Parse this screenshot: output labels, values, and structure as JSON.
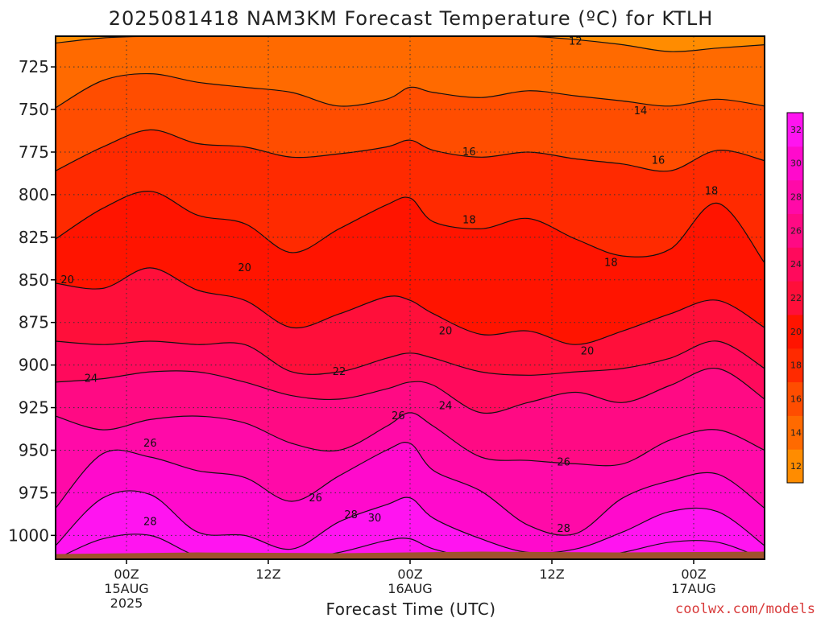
{
  "chart_data": {
    "type": "heatmap",
    "title": "2025081418 NAM3KM Forecast Temperature (ºC) for KTLH",
    "xlabel": "Forecast Time (UTC)",
    "ylabel": "",
    "y_axis": {
      "ticks": [
        725,
        750,
        775,
        800,
        825,
        850,
        875,
        900,
        925,
        950,
        975,
        1000
      ],
      "range": [
        707,
        1014
      ],
      "inverted": true
    },
    "x_axis": {
      "ticks": [
        {
          "hour": 6,
          "lines": [
            "00Z",
            "15AUG",
            "2025"
          ]
        },
        {
          "hour": 18,
          "lines": [
            "12Z"
          ]
        },
        {
          "hour": 30,
          "lines": [
            "00Z",
            "16AUG"
          ]
        },
        {
          "hour": 42,
          "lines": [
            "12Z"
          ]
        },
        {
          "hour": 54,
          "lines": [
            "00Z",
            "17AUG"
          ]
        }
      ],
      "range": [
        0,
        60
      ]
    },
    "grid": true,
    "colorbar": {
      "ticks": [
        12,
        14,
        16,
        18,
        20,
        22,
        24,
        26,
        28,
        30,
        32
      ],
      "colors": [
        "#ff8c00",
        "#ff6a00",
        "#ff4d00",
        "#ff2a00",
        "#ff1400",
        "#ff0f3a",
        "#ff0a5c",
        "#ff0a84",
        "#ff0aa8",
        "#ff0acc",
        "#ff14f0"
      ],
      "placement": "right"
    },
    "contours": [
      {
        "level": 12,
        "labels": [
          [
            44,
            710
          ]
        ]
      },
      {
        "level": 14,
        "labels": [
          [
            49.5,
            751
          ]
        ]
      },
      {
        "level": 16,
        "labels": [
          [
            35,
            775
          ]
        ],
        "labels2": [
          [
            51,
            780
          ]
        ]
      },
      {
        "level": 18,
        "labels": [
          [
            35,
            815
          ],
          [
            47,
            840
          ],
          [
            55.5,
            798
          ]
        ]
      },
      {
        "level": 20,
        "labels": [
          [
            1,
            850
          ],
          [
            16,
            843
          ],
          [
            33,
            880
          ],
          [
            45,
            892
          ]
        ]
      },
      {
        "level": 22,
        "labels": [
          [
            24,
            904
          ]
        ]
      },
      {
        "level": 24,
        "labels": [
          [
            3,
            908
          ],
          [
            33,
            924
          ]
        ]
      },
      {
        "level": 26,
        "labels": [
          [
            8,
            946
          ],
          [
            29,
            930
          ],
          [
            22,
            978
          ],
          [
            43,
            957
          ]
        ]
      },
      {
        "level": 28,
        "labels": [
          [
            8,
            992
          ],
          [
            25,
            988
          ],
          [
            43,
            996
          ]
        ]
      },
      {
        "level": 30,
        "labels": [
          [
            27,
            990
          ]
        ]
      }
    ],
    "profile_hours": [
      0,
      4,
      8,
      12,
      16,
      20,
      24,
      28,
      30,
      32,
      36,
      40,
      44,
      48,
      52,
      56,
      60
    ],
    "isobar_levels": [
      {
        "level": 12,
        "p": [
          711,
          708,
          707,
          707,
          707,
          707,
          707,
          707,
          707,
          707,
          707,
          707,
          709,
          712,
          716,
          714,
          712
        ]
      },
      {
        "level": 14,
        "p": [
          749,
          733,
          729,
          734,
          737,
          740,
          748,
          744,
          737,
          740,
          743,
          739,
          742,
          745,
          748,
          744,
          748
        ]
      },
      {
        "level": 16,
        "p": [
          786,
          772,
          762,
          770,
          772,
          778,
          776,
          772,
          768,
          774,
          778,
          775,
          779,
          782,
          786,
          774,
          780
        ]
      },
      {
        "level": 18,
        "p": [
          826,
          808,
          798,
          812,
          817,
          834,
          820,
          806,
          802,
          816,
          820,
          814,
          826,
          836,
          832,
          805,
          840
        ]
      },
      {
        "level": 20,
        "p": [
          852,
          855,
          843,
          856,
          862,
          878,
          870,
          860,
          862,
          870,
          882,
          880,
          888,
          880,
          870,
          862,
          878
        ]
      },
      {
        "level": 22,
        "p": [
          886,
          888,
          886,
          888,
          888,
          904,
          904,
          896,
          893,
          896,
          904,
          906,
          904,
          902,
          896,
          886,
          902
        ]
      },
      {
        "level": 24,
        "p": [
          910,
          908,
          904,
          904,
          910,
          918,
          920,
          914,
          910,
          912,
          928,
          922,
          916,
          922,
          912,
          902,
          920
        ]
      },
      {
        "level": 26,
        "p": [
          930,
          938,
          932,
          930,
          934,
          946,
          950,
          936,
          928,
          936,
          954,
          956,
          958,
          958,
          944,
          938,
          950
        ]
      },
      {
        "level": 28,
        "p": [
          984,
          952,
          954,
          962,
          966,
          980,
          965,
          950,
          946,
          962,
          974,
          994,
          999,
          978,
          968,
          964,
          984
        ]
      },
      {
        "level": 30,
        "p": [
          1006,
          978,
          976,
          998,
          1000,
          1008,
          992,
          982,
          978,
          990,
          1002,
          1010,
          1008,
          998,
          986,
          986,
          1006
        ]
      },
      {
        "level": 32,
        "p": [
          1014,
          1002,
          1000,
          1012,
          1014,
          1014,
          1010,
          1003,
          1002,
          1008,
          1014,
          1014,
          1014,
          1010,
          1004,
          1004,
          1014
        ]
      }
    ],
    "surface": {
      "color": "#a0522d",
      "pressure_top": 1010
    }
  },
  "footer": {
    "credit": "coolwx.com/models"
  }
}
